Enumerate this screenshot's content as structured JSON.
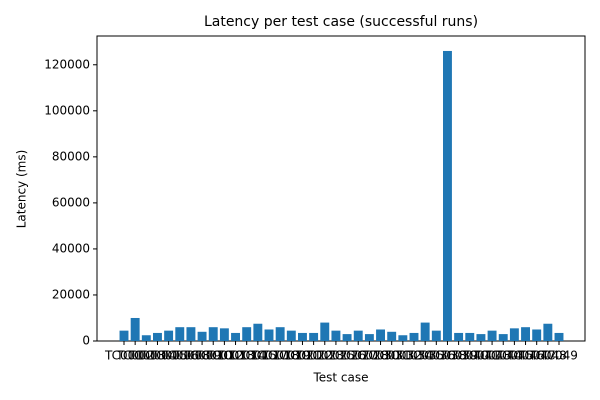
{
  "chart_data": {
    "type": "bar",
    "title": "Latency per test case (successful runs)",
    "x_label": "Test case",
    "y_label": "Latency (ms)",
    "categories": [
      "TC001",
      "TC002",
      "TC003",
      "TC004",
      "TC005",
      "TC006",
      "TC008",
      "TC009",
      "TC010",
      "TC012",
      "TC013",
      "TC014",
      "TC015",
      "TC017",
      "TC018",
      "TC019",
      "TC021",
      "TC022",
      "TC023",
      "TC025",
      "TC026",
      "TC027",
      "TC028",
      "TC030",
      "TC031",
      "TC032",
      "TC034",
      "TC035",
      "TC036",
      "TC038",
      "TC039",
      "TC040",
      "TC041",
      "TC043",
      "TC044",
      "TC045",
      "TC046",
      "TC047",
      "TC048",
      "TC049"
    ],
    "values": [
      4500,
      10000,
      2500,
      3500,
      4500,
      6000,
      6000,
      4000,
      6000,
      5500,
      3500,
      6000,
      7500,
      5000,
      6000,
      4500,
      3500,
      3500,
      8000,
      4500,
      3000,
      4500,
      3000,
      5000,
      4000,
      2500,
      3500,
      8000,
      4500,
      126000,
      3500,
      3500,
      3000,
      4500,
      3000,
      5500,
      6000,
      5000,
      7500,
      3500
    ],
    "color": "#1f77b4",
    "ylim": [
      0,
      132500
    ],
    "yticks": [
      0,
      20000,
      40000,
      60000,
      80000,
      100000,
      120000
    ],
    "grid": false
  }
}
